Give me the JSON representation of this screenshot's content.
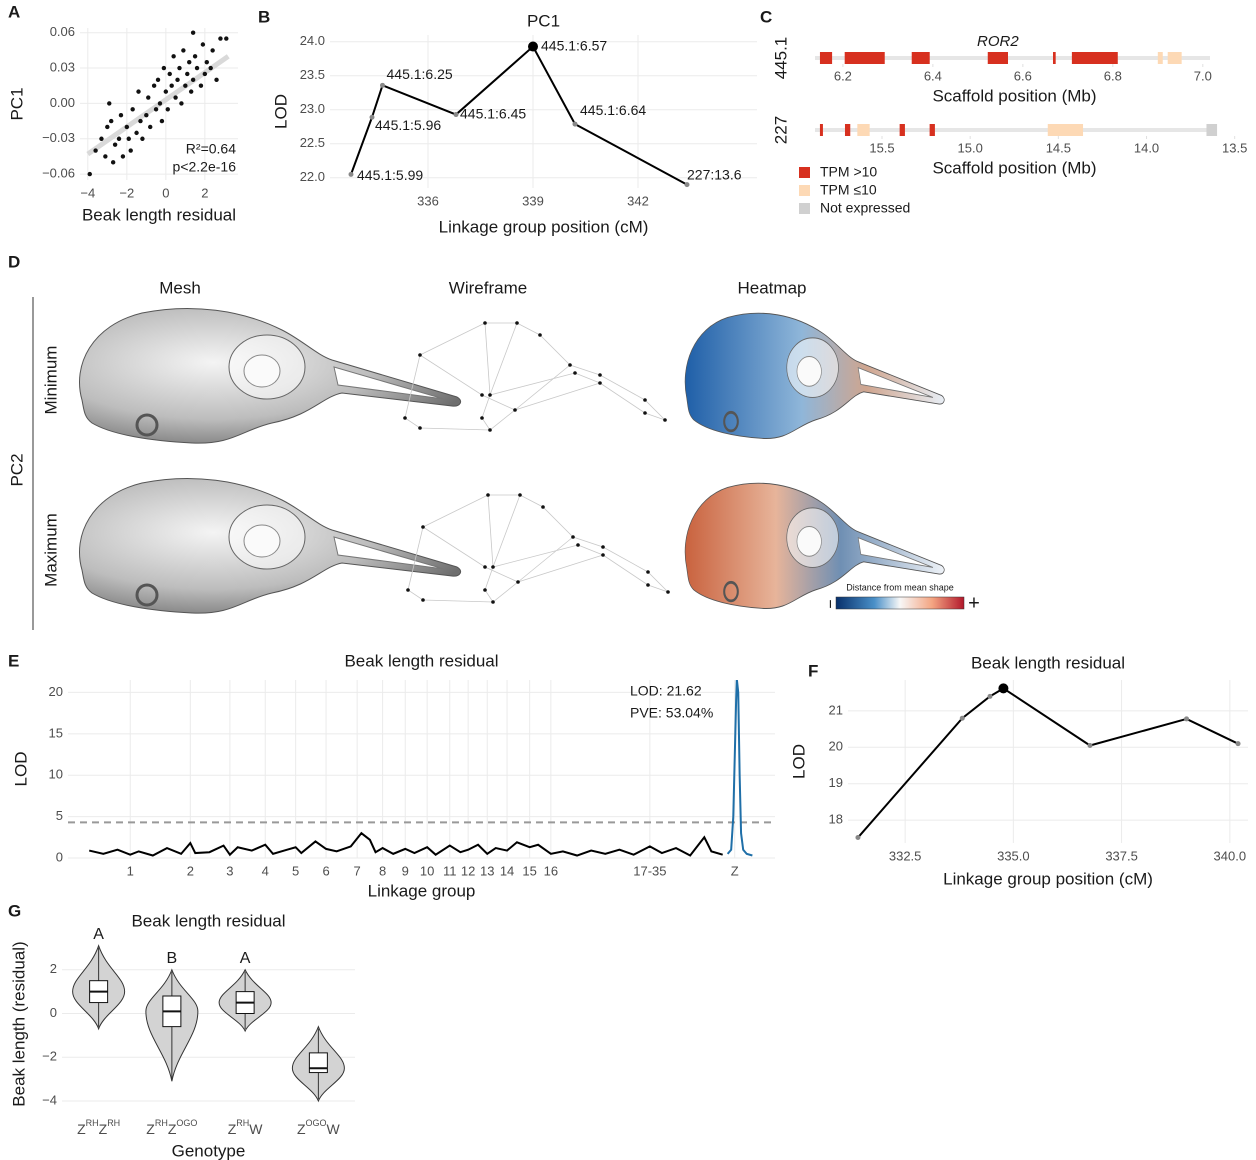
{
  "chart_data": [
    {
      "panel": "A",
      "type": "scatter",
      "x_label": "Beak length residual",
      "y_label": "PC1",
      "color": "#111111",
      "grid": true,
      "x": [
        -3.9,
        -3.6,
        -3.3,
        -3.1,
        -3.0,
        -2.8,
        -2.7,
        -2.6,
        -2.4,
        -2.3,
        -2.2,
        -2.0,
        -1.9,
        -1.8,
        -1.7,
        -1.5,
        -1.4,
        -1.3,
        -1.2,
        -1.0,
        -0.9,
        -0.8,
        -0.6,
        -0.5,
        -0.4,
        -0.3,
        -0.2,
        -0.1,
        0.0,
        0.1,
        0.2,
        0.3,
        0.4,
        0.5,
        0.6,
        0.7,
        0.8,
        0.9,
        1.0,
        1.1,
        1.2,
        1.3,
        1.4,
        1.5,
        1.6,
        1.8,
        1.9,
        2.0,
        2.1,
        2.3,
        2.4,
        2.6,
        2.8,
        3.1,
        -2.9,
        1.4
      ],
      "values": [
        -0.06,
        -0.04,
        -0.03,
        -0.045,
        -0.02,
        -0.015,
        -0.05,
        -0.035,
        -0.03,
        -0.01,
        -0.045,
        -0.02,
        -0.03,
        -0.04,
        -0.005,
        -0.025,
        0.01,
        -0.015,
        -0.03,
        -0.01,
        0.005,
        -0.02,
        0.015,
        -0.005,
        0.02,
        0.0,
        -0.015,
        0.03,
        0.01,
        -0.005,
        0.025,
        0.015,
        0.04,
        0.005,
        0.02,
        0.03,
        0.0,
        0.045,
        0.015,
        0.025,
        0.035,
        0.01,
        0.02,
        0.04,
        0.03,
        0.015,
        0.05,
        0.025,
        0.035,
        0.03,
        0.045,
        0.02,
        0.055,
        0.055,
        0.0,
        0.06
      ],
      "trend": {
        "x": [
          -4,
          3.2
        ],
        "values": [
          -0.043,
          0.04
        ],
        "color": "#d9d9d9"
      },
      "annotations": [
        "R²=0.64",
        "p<2.2e-16"
      ],
      "xlim": [
        -4.4,
        3.7
      ],
      "xticks": [
        {
          "value": -4,
          "label": "−4"
        },
        {
          "value": -2,
          "label": "−2"
        },
        0,
        2
      ],
      "ylim": [
        -0.065,
        0.064
      ],
      "yticks": [
        {
          "value": -0.06,
          "label": "−0.06"
        },
        {
          "value": -0.03,
          "label": "−0.03"
        },
        {
          "value": 0,
          "label": "0.00"
        },
        0.03,
        0.06
      ]
    },
    {
      "panel": "B",
      "type": "line",
      "title": "PC1",
      "x_label": "Linkage group position (cM)",
      "y_label": "LOD",
      "color": "#000000",
      "grid": true,
      "x": [
        333.8,
        334.4,
        334.7,
        336.8,
        339.0,
        340.2,
        343.4
      ],
      "values": [
        22.05,
        22.89,
        23.36,
        22.93,
        23.93,
        22.79,
        21.9
      ],
      "point_labels": [
        "445.1:5.99",
        "445.1:5.96",
        "445.1:6.25",
        "445.1:6.45",
        "445.1:6.57",
        "445.1:6.64",
        "227:13.6"
      ],
      "xlim": [
        333.2,
        345.4
      ],
      "xticks": [
        336,
        339,
        342
      ],
      "ylim": [
        21.85,
        24.1
      ],
      "yticks": [
        {
          "value": 22,
          "label": "22.0"
        },
        22.5,
        {
          "value": 23,
          "label": "23.0"
        },
        23.5,
        {
          "value": 24,
          "label": "24.0"
        }
      ]
    },
    {
      "panel": "C",
      "type": "gene_track",
      "legend": [
        "TPM >10",
        "TPM ≤10",
        "Not expressed"
      ],
      "colors": [
        "#d7301f",
        "#fdd9b5",
        "#d0d0d0"
      ],
      "tracks": [
        {
          "name": "445.1",
          "x_label": "Scaffold position (Mb)",
          "xlim": [
            6.138,
            7.016
          ],
          "xticks": [
            6.2,
            6.4,
            6.6,
            6.8,
            {
              "value": 7,
              "label": "7.0"
            }
          ],
          "genes": [
            {
              "start": 6.149,
              "end": 6.176,
              "status": 0
            },
            {
              "start": 6.204,
              "end": 6.293,
              "status": 0
            },
            {
              "start": 6.353,
              "end": 6.393,
              "status": 0
            },
            {
              "start": 6.522,
              "end": 6.567,
              "status": 0,
              "label": "ROR2"
            },
            {
              "start": 6.667,
              "end": 6.673,
              "status": 0
            },
            {
              "start": 6.709,
              "end": 6.811,
              "status": 0
            },
            {
              "start": 6.9,
              "end": 6.911,
              "status": 1
            },
            {
              "start": 6.922,
              "end": 6.953,
              "status": 1
            }
          ]
        },
        {
          "name": "227",
          "x_label": "Scaffold position (Mb)",
          "xlim": [
            15.88,
            13.64
          ],
          "xticks": [
            15.5,
            {
              "value": 15,
              "label": "15.0"
            },
            14.5,
            {
              "value": 14,
              "label": "14.0"
            },
            13.5
          ],
          "genes": [
            {
              "start": 15.852,
              "end": 15.835,
              "status": 0
            },
            {
              "start": 15.71,
              "end": 15.68,
              "status": 0
            },
            {
              "start": 15.64,
              "end": 15.57,
              "status": 1
            },
            {
              "start": 15.4,
              "end": 15.37,
              "status": 0
            },
            {
              "start": 15.23,
              "end": 15.2,
              "status": 0
            },
            {
              "start": 14.56,
              "end": 14.36,
              "status": 1
            },
            {
              "start": 13.66,
              "end": 13.6,
              "status": 2
            }
          ]
        }
      ]
    },
    {
      "panel": "E",
      "type": "manhattan",
      "title": "Beak length residual",
      "x_label": "Linkage group",
      "y_label": "LOD",
      "grid": true,
      "series": [
        {
          "color": "#000000",
          "x": [
            3,
            5,
            7,
            8.8,
            10,
            12,
            14,
            16,
            17.3,
            18,
            20,
            22,
            22.9,
            24,
            26,
            27.9,
            29,
            31,
            32.2,
            33,
            35,
            36.5,
            38,
            40,
            41.5,
            42.7,
            43.5,
            44.5,
            46,
            47.7,
            49,
            50.8,
            52,
            54,
            55.5,
            56.6,
            58,
            59.3,
            60.5,
            62.1,
            63.5,
            65.3,
            66.5,
            68.3,
            70,
            72,
            74,
            76,
            78,
            80,
            82.3,
            84,
            86,
            88,
            90,
            91,
            92.6
          ],
          "values": [
            0.9,
            0.5,
            1.0,
            0.4,
            0.8,
            0.3,
            1.2,
            0.5,
            1.8,
            0.6,
            0.7,
            1.5,
            0.4,
            1.3,
            0.9,
            1.6,
            0.5,
            1.0,
            1.3,
            0.6,
            2.0,
            1.1,
            0.8,
            1.4,
            3.0,
            2.2,
            0.7,
            1.2,
            0.5,
            1.1,
            0.6,
            1.3,
            0.4,
            1.5,
            0.7,
            1.0,
            1.6,
            0.5,
            1.2,
            0.9,
            1.9,
            1.3,
            1.6,
            0.5,
            0.8,
            0.3,
            0.9,
            0.5,
            1.0,
            0.4,
            1.4,
            0.6,
            1.2,
            0.3,
            2.5,
            0.8,
            0.4
          ]
        },
        {
          "color": "#1f6fa8",
          "x": [
            93.3,
            93.8,
            94.1,
            94.3,
            94.5,
            94.6,
            94.8,
            95.0,
            95.2,
            95.5,
            96.0,
            96.8
          ],
          "values": [
            0.5,
            1.0,
            5.0,
            12.0,
            19.0,
            21.62,
            20.0,
            10.0,
            3.0,
            1.0,
            0.5,
            0.3
          ]
        }
      ],
      "threshold": 4.3,
      "annotations": [
        "LOD: 21.62",
        "PVE: 53.04%"
      ],
      "xlim": [
        0,
        100
      ],
      "xticks": [
        {
          "value": 8.8,
          "label": "1"
        },
        {
          "value": 17.3,
          "label": "2"
        },
        {
          "value": 22.9,
          "label": "3"
        },
        {
          "value": 27.9,
          "label": "4"
        },
        {
          "value": 32.2,
          "label": "5"
        },
        {
          "value": 36.5,
          "label": "6"
        },
        {
          "value": 40.9,
          "label": "7"
        },
        {
          "value": 44.5,
          "label": "8"
        },
        {
          "value": 47.7,
          "label": "9"
        },
        {
          "value": 50.8,
          "label": "10"
        },
        {
          "value": 54.0,
          "label": "11"
        },
        {
          "value": 56.6,
          "label": "12"
        },
        {
          "value": 59.3,
          "label": "13"
        },
        {
          "value": 62.1,
          "label": "14"
        },
        {
          "value": 65.3,
          "label": "15"
        },
        {
          "value": 68.3,
          "label": "16"
        },
        {
          "value": 82.3,
          "label": "17-35"
        },
        {
          "value": 94.3,
          "label": "Z"
        }
      ],
      "ylim": [
        0,
        21.5
      ],
      "yticks": [
        0,
        5,
        10,
        15,
        20
      ]
    },
    {
      "panel": "F",
      "type": "line",
      "title": "Beak length residual",
      "x_label": "Linkage group position (cM)",
      "y_label": "LOD",
      "color": "#000000",
      "grid": true,
      "x": [
        331.41,
        333.82,
        334.46,
        334.77,
        336.77,
        339.0,
        340.19
      ],
      "values": [
        17.52,
        20.8,
        21.4,
        21.62,
        20.05,
        20.78,
        20.1
      ],
      "xlim": [
        331.18,
        340.42
      ],
      "xticks": [
        332.5,
        {
          "value": 335,
          "label": "335.0"
        },
        337.5,
        {
          "value": 340,
          "label": "340.0"
        }
      ],
      "ylim": [
        17.37,
        21.85
      ],
      "yticks": [
        18,
        19,
        20,
        21
      ]
    },
    {
      "panel": "G",
      "type": "violin",
      "title": "Beak length residual",
      "x_label": "Genotype",
      "y_label": "Beak length (residual)",
      "color": "#d3d3d3",
      "grid": true,
      "categories": [
        [
          "Z",
          "RH",
          "Z",
          "RH"
        ],
        [
          "Z",
          "RH",
          "Z",
          "OGO"
        ],
        [
          "Z",
          "RH",
          "W"
        ],
        [
          "Z",
          "OGO",
          "W"
        ]
      ],
      "min": [
        -0.7,
        -3.1,
        -0.8,
        -4.0
      ],
      "q1": [
        0.5,
        -0.6,
        0.0,
        -2.7
      ],
      "median": [
        1.0,
        0.1,
        0.5,
        -2.5
      ],
      "q3": [
        1.5,
        0.8,
        1.0,
        -1.8
      ],
      "max": [
        3.1,
        2.0,
        2.0,
        -0.6
      ],
      "letters": [
        "A",
        "B",
        "A",
        null
      ],
      "ylim": [
        -4.32,
        3.36
      ],
      "yticks": [
        {
          "value": -4,
          "label": "−4"
        },
        {
          "value": -2,
          "label": "−2"
        },
        0,
        2
      ]
    }
  ],
  "panel_d": {
    "panel": "D",
    "columns": [
      "Mesh",
      "Wireframe",
      "Heatmap"
    ],
    "group_label": "PC2",
    "rows": [
      "Minimum",
      "Maximum"
    ],
    "colorbar": {
      "title": "Distance from mean shape",
      "low": "−",
      "high": "+"
    }
  }
}
